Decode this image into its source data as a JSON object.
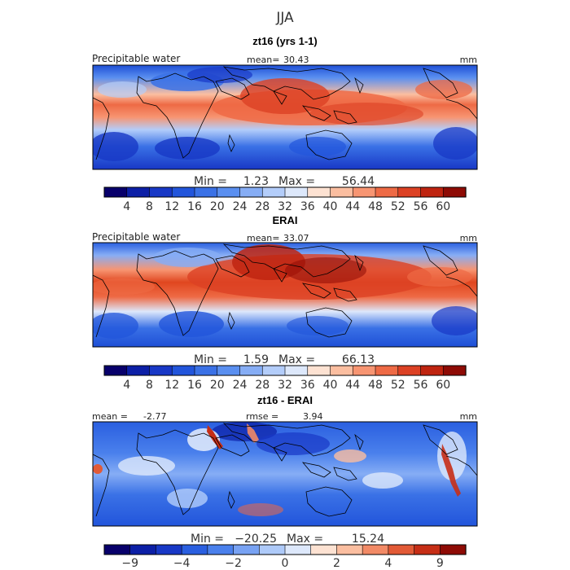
{
  "header": {
    "season": "JJA"
  },
  "chart_data": [
    {
      "type": "heatmap",
      "title": "zt16 (yrs 1-1)",
      "variable": "Precipitable water",
      "units": "mm",
      "mean_label": "mean=",
      "mean": "30.43",
      "minmax": {
        "min_label": "Min =",
        "min": "1.23",
        "max_label": "Max =",
        "max": "56.44"
      },
      "colorbar": {
        "levels": [
          "4",
          "8",
          "12",
          "16",
          "20",
          "24",
          "28",
          "32",
          "36",
          "40",
          "44",
          "48",
          "52",
          "56",
          "60"
        ],
        "colors": [
          "#08006b",
          "#0c1fa6",
          "#1838c6",
          "#2255db",
          "#3a71e6",
          "#5a8ff0",
          "#86adf5",
          "#b3cdfa",
          "#dde8fb",
          "#fde2d2",
          "#fbbea0",
          "#f79572",
          "#ee6a45",
          "#dc4124",
          "#bf2410",
          "#8e0b05"
        ]
      }
    },
    {
      "type": "heatmap",
      "title": "ERAI",
      "variable": "Precipitable water",
      "units": "mm",
      "mean_label": "mean=",
      "mean": "33.07",
      "minmax": {
        "min_label": "Min =",
        "min": "1.59",
        "max_label": "Max =",
        "max": "66.13"
      },
      "colorbar": {
        "levels": [
          "4",
          "8",
          "12",
          "16",
          "20",
          "24",
          "28",
          "32",
          "36",
          "40",
          "44",
          "48",
          "52",
          "56",
          "60"
        ],
        "colors": [
          "#08006b",
          "#0c1fa6",
          "#1838c6",
          "#2255db",
          "#3a71e6",
          "#5a8ff0",
          "#86adf5",
          "#b3cdfa",
          "#dde8fb",
          "#fde2d2",
          "#fbbea0",
          "#f79572",
          "#ee6a45",
          "#dc4124",
          "#bf2410",
          "#8e0b05"
        ]
      }
    },
    {
      "type": "heatmap",
      "title": "zt16 - ERAI",
      "variable": "",
      "units": "mm",
      "mean_label": "mean =",
      "mean": "-2.77",
      "rmse_label": "rmse =",
      "rmse": "3.94",
      "minmax": {
        "min_label": "Min =",
        "min": "−20.25",
        "max_label": "Max =",
        "max": "15.24"
      },
      "colorbar": {
        "levels": [
          "−9",
          "",
          "−4",
          "",
          "−2",
          "",
          "0",
          "",
          "2",
          "",
          "4",
          "",
          "9"
        ],
        "colors": [
          "#08006b",
          "#0c1fa6",
          "#1838c6",
          "#2a5fe0",
          "#4a80ec",
          "#78a2f3",
          "#aecaf9",
          "#dde8fb",
          "#fde2d2",
          "#fbbea0",
          "#f28a66",
          "#e25a36",
          "#c62e16",
          "#8e0b05"
        ]
      }
    }
  ]
}
